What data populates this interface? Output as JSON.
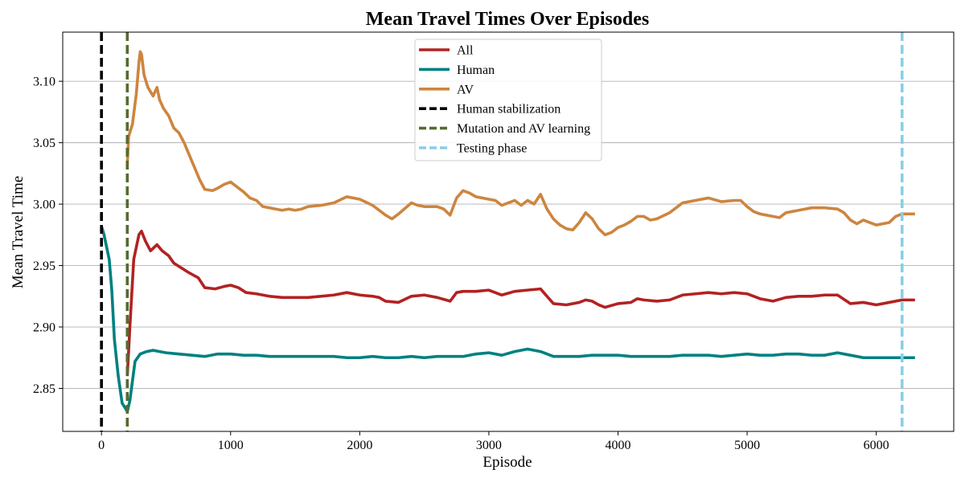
{
  "chart_data": {
    "type": "line",
    "title": "Mean Travel Times Over Episodes",
    "xlabel": "Episode",
    "ylabel": "Mean Travel Time",
    "xlim": [
      -300,
      6600
    ],
    "ylim": [
      2.815,
      3.14
    ],
    "x_ticks": [
      0,
      1000,
      2000,
      3000,
      4000,
      5000,
      6000
    ],
    "y_ticks": [
      2.85,
      2.9,
      2.95,
      3.0,
      3.05,
      3.1
    ],
    "y_tick_labels": [
      "2.85",
      "2.90",
      "2.95",
      "3.00",
      "3.05",
      "3.10"
    ],
    "grid": "horizontal",
    "legend_position": "top-center",
    "series": [
      {
        "name": "All",
        "color": "#b22222",
        "points": [
          [
            200,
            2.86
          ],
          [
            220,
            2.9
          ],
          [
            250,
            2.955
          ],
          [
            290,
            2.975
          ],
          [
            310,
            2.978
          ],
          [
            340,
            2.97
          ],
          [
            380,
            2.962
          ],
          [
            430,
            2.967
          ],
          [
            470,
            2.962
          ],
          [
            520,
            2.958
          ],
          [
            560,
            2.952
          ],
          [
            620,
            2.948
          ],
          [
            680,
            2.944
          ],
          [
            750,
            2.94
          ],
          [
            800,
            2.932
          ],
          [
            880,
            2.931
          ],
          [
            950,
            2.933
          ],
          [
            1000,
            2.934
          ],
          [
            1060,
            2.932
          ],
          [
            1120,
            2.928
          ],
          [
            1200,
            2.927
          ],
          [
            1300,
            2.925
          ],
          [
            1400,
            2.924
          ],
          [
            1500,
            2.924
          ],
          [
            1600,
            2.924
          ],
          [
            1700,
            2.925
          ],
          [
            1800,
            2.926
          ],
          [
            1900,
            2.928
          ],
          [
            2000,
            2.926
          ],
          [
            2100,
            2.925
          ],
          [
            2150,
            2.924
          ],
          [
            2200,
            2.921
          ],
          [
            2300,
            2.92
          ],
          [
            2400,
            2.925
          ],
          [
            2500,
            2.926
          ],
          [
            2600,
            2.924
          ],
          [
            2700,
            2.921
          ],
          [
            2750,
            2.928
          ],
          [
            2800,
            2.929
          ],
          [
            2900,
            2.929
          ],
          [
            3000,
            2.93
          ],
          [
            3100,
            2.926
          ],
          [
            3200,
            2.929
          ],
          [
            3300,
            2.93
          ],
          [
            3400,
            2.931
          ],
          [
            3450,
            2.925
          ],
          [
            3500,
            2.919
          ],
          [
            3600,
            2.918
          ],
          [
            3700,
            2.92
          ],
          [
            3750,
            2.922
          ],
          [
            3800,
            2.921
          ],
          [
            3850,
            2.918
          ],
          [
            3900,
            2.916
          ],
          [
            4000,
            2.919
          ],
          [
            4100,
            2.92
          ],
          [
            4150,
            2.923
          ],
          [
            4200,
            2.922
          ],
          [
            4300,
            2.921
          ],
          [
            4400,
            2.922
          ],
          [
            4500,
            2.926
          ],
          [
            4600,
            2.927
          ],
          [
            4700,
            2.928
          ],
          [
            4800,
            2.927
          ],
          [
            4900,
            2.928
          ],
          [
            5000,
            2.927
          ],
          [
            5100,
            2.923
          ],
          [
            5200,
            2.921
          ],
          [
            5300,
            2.924
          ],
          [
            5400,
            2.925
          ],
          [
            5500,
            2.925
          ],
          [
            5600,
            2.926
          ],
          [
            5700,
            2.926
          ],
          [
            5800,
            2.919
          ],
          [
            5900,
            2.92
          ],
          [
            6000,
            2.918
          ],
          [
            6100,
            2.92
          ],
          [
            6200,
            2.922
          ],
          [
            6300,
            2.922
          ]
        ]
      },
      {
        "name": "Human",
        "color": "#008080",
        "points": [
          [
            0,
            2.982
          ],
          [
            20,
            2.975
          ],
          [
            40,
            2.965
          ],
          [
            60,
            2.955
          ],
          [
            80,
            2.93
          ],
          [
            100,
            2.89
          ],
          [
            130,
            2.86
          ],
          [
            160,
            2.838
          ],
          [
            190,
            2.833
          ],
          [
            200,
            2.831
          ],
          [
            220,
            2.84
          ],
          [
            260,
            2.872
          ],
          [
            300,
            2.878
          ],
          [
            350,
            2.88
          ],
          [
            400,
            2.881
          ],
          [
            450,
            2.88
          ],
          [
            500,
            2.879
          ],
          [
            600,
            2.878
          ],
          [
            700,
            2.877
          ],
          [
            800,
            2.876
          ],
          [
            900,
            2.878
          ],
          [
            1000,
            2.878
          ],
          [
            1100,
            2.877
          ],
          [
            1200,
            2.877
          ],
          [
            1300,
            2.876
          ],
          [
            1400,
            2.876
          ],
          [
            1500,
            2.876
          ],
          [
            1600,
            2.876
          ],
          [
            1700,
            2.876
          ],
          [
            1800,
            2.876
          ],
          [
            1900,
            2.875
          ],
          [
            2000,
            2.875
          ],
          [
            2100,
            2.876
          ],
          [
            2200,
            2.875
          ],
          [
            2300,
            2.875
          ],
          [
            2400,
            2.876
          ],
          [
            2500,
            2.875
          ],
          [
            2600,
            2.876
          ],
          [
            2700,
            2.876
          ],
          [
            2800,
            2.876
          ],
          [
            2900,
            2.878
          ],
          [
            3000,
            2.879
          ],
          [
            3100,
            2.877
          ],
          [
            3200,
            2.88
          ],
          [
            3300,
            2.882
          ],
          [
            3400,
            2.88
          ],
          [
            3500,
            2.876
          ],
          [
            3600,
            2.876
          ],
          [
            3700,
            2.876
          ],
          [
            3800,
            2.877
          ],
          [
            3900,
            2.877
          ],
          [
            4000,
            2.877
          ],
          [
            4100,
            2.876
          ],
          [
            4200,
            2.876
          ],
          [
            4300,
            2.876
          ],
          [
            4400,
            2.876
          ],
          [
            4500,
            2.877
          ],
          [
            4600,
            2.877
          ],
          [
            4700,
            2.877
          ],
          [
            4800,
            2.876
          ],
          [
            4900,
            2.877
          ],
          [
            5000,
            2.878
          ],
          [
            5100,
            2.877
          ],
          [
            5200,
            2.877
          ],
          [
            5300,
            2.878
          ],
          [
            5400,
            2.878
          ],
          [
            5500,
            2.877
          ],
          [
            5600,
            2.877
          ],
          [
            5700,
            2.879
          ],
          [
            5800,
            2.877
          ],
          [
            5900,
            2.875
          ],
          [
            6000,
            2.875
          ],
          [
            6100,
            2.875
          ],
          [
            6200,
            2.875
          ],
          [
            6300,
            2.875
          ]
        ]
      },
      {
        "name": "AV",
        "color": "#cd853f",
        "points": [
          [
            200,
            3.032
          ],
          [
            210,
            3.055
          ],
          [
            240,
            3.065
          ],
          [
            270,
            3.09
          ],
          [
            290,
            3.115
          ],
          [
            300,
            3.124
          ],
          [
            310,
            3.122
          ],
          [
            330,
            3.105
          ],
          [
            360,
            3.095
          ],
          [
            400,
            3.088
          ],
          [
            430,
            3.095
          ],
          [
            450,
            3.085
          ],
          [
            480,
            3.078
          ],
          [
            520,
            3.072
          ],
          [
            560,
            3.062
          ],
          [
            600,
            3.058
          ],
          [
            640,
            3.05
          ],
          [
            680,
            3.04
          ],
          [
            720,
            3.03
          ],
          [
            760,
            3.02
          ],
          [
            800,
            3.012
          ],
          [
            860,
            3.011
          ],
          [
            900,
            3.013
          ],
          [
            950,
            3.016
          ],
          [
            1000,
            3.018
          ],
          [
            1050,
            3.014
          ],
          [
            1100,
            3.01
          ],
          [
            1150,
            3.005
          ],
          [
            1200,
            3.003
          ],
          [
            1250,
            2.998
          ],
          [
            1300,
            2.997
          ],
          [
            1350,
            2.996
          ],
          [
            1400,
            2.995
          ],
          [
            1450,
            2.996
          ],
          [
            1500,
            2.995
          ],
          [
            1550,
            2.996
          ],
          [
            1600,
            2.998
          ],
          [
            1700,
            2.999
          ],
          [
            1800,
            3.001
          ],
          [
            1900,
            3.006
          ],
          [
            2000,
            3.004
          ],
          [
            2100,
            2.999
          ],
          [
            2150,
            2.995
          ],
          [
            2200,
            2.991
          ],
          [
            2250,
            2.988
          ],
          [
            2300,
            2.992
          ],
          [
            2400,
            3.001
          ],
          [
            2450,
            2.999
          ],
          [
            2500,
            2.998
          ],
          [
            2600,
            2.998
          ],
          [
            2650,
            2.996
          ],
          [
            2700,
            2.991
          ],
          [
            2750,
            3.005
          ],
          [
            2800,
            3.011
          ],
          [
            2850,
            3.009
          ],
          [
            2900,
            3.006
          ],
          [
            3000,
            3.004
          ],
          [
            3050,
            3.003
          ],
          [
            3100,
            2.999
          ],
          [
            3150,
            3.001
          ],
          [
            3200,
            3.003
          ],
          [
            3250,
            2.999
          ],
          [
            3300,
            3.003
          ],
          [
            3350,
            3.0
          ],
          [
            3400,
            3.008
          ],
          [
            3450,
            2.996
          ],
          [
            3500,
            2.988
          ],
          [
            3550,
            2.983
          ],
          [
            3600,
            2.98
          ],
          [
            3650,
            2.979
          ],
          [
            3700,
            2.985
          ],
          [
            3750,
            2.993
          ],
          [
            3800,
            2.988
          ],
          [
            3850,
            2.98
          ],
          [
            3900,
            2.975
          ],
          [
            3950,
            2.977
          ],
          [
            4000,
            2.981
          ],
          [
            4050,
            2.983
          ],
          [
            4100,
            2.986
          ],
          [
            4150,
            2.99
          ],
          [
            4200,
            2.99
          ],
          [
            4250,
            2.987
          ],
          [
            4300,
            2.988
          ],
          [
            4400,
            2.993
          ],
          [
            4500,
            3.001
          ],
          [
            4600,
            3.003
          ],
          [
            4700,
            3.005
          ],
          [
            4800,
            3.002
          ],
          [
            4900,
            3.003
          ],
          [
            4950,
            3.003
          ],
          [
            5000,
            2.998
          ],
          [
            5050,
            2.994
          ],
          [
            5100,
            2.992
          ],
          [
            5200,
            2.99
          ],
          [
            5250,
            2.989
          ],
          [
            5300,
            2.993
          ],
          [
            5400,
            2.995
          ],
          [
            5500,
            2.997
          ],
          [
            5600,
            2.997
          ],
          [
            5700,
            2.996
          ],
          [
            5750,
            2.993
          ],
          [
            5800,
            2.987
          ],
          [
            5850,
            2.984
          ],
          [
            5900,
            2.987
          ],
          [
            5950,
            2.985
          ],
          [
            6000,
            2.983
          ],
          [
            6050,
            2.984
          ],
          [
            6100,
            2.985
          ],
          [
            6150,
            2.99
          ],
          [
            6200,
            2.992
          ],
          [
            6300,
            2.992
          ]
        ]
      }
    ],
    "vlines": [
      {
        "name": "Human stabilization",
        "x": 0,
        "color": "#000000"
      },
      {
        "name": "Mutation and AV learning",
        "x": 200,
        "color": "#556b2f"
      },
      {
        "name": "Testing phase",
        "x": 6200,
        "color": "#87ceeb"
      }
    ]
  }
}
